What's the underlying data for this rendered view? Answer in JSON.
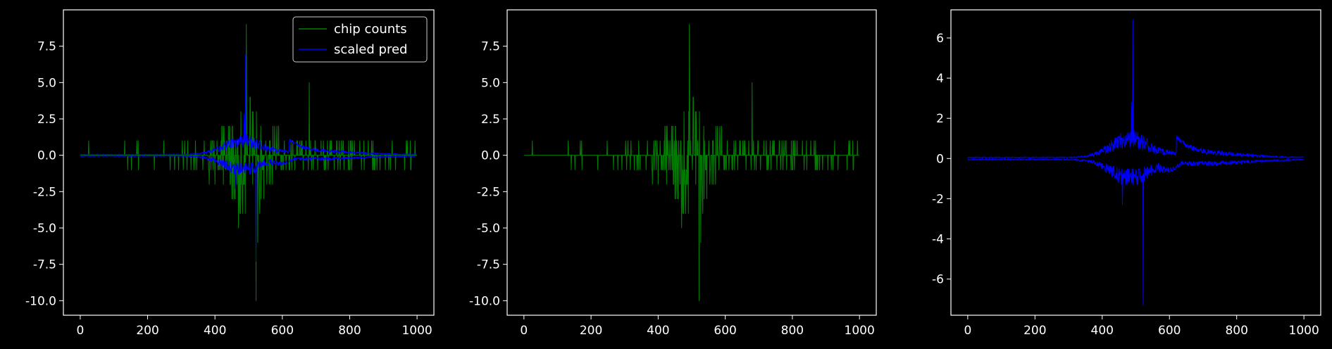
{
  "chart_data": [
    {
      "type": "line",
      "panel": 1,
      "xlim": [
        -50,
        1050
      ],
      "ylim": [
        -11,
        10
      ],
      "xticks": [
        "0",
        "200",
        "400",
        "600",
        "800",
        "1000"
      ],
      "yticks": [
        "-10.0",
        "-7.5",
        "-5.0",
        "-2.5",
        "0.0",
        "2.5",
        "5.0",
        "7.5"
      ],
      "grid": false,
      "legend": {
        "position": "top-right",
        "entries": [
          "chip counts",
          "scaled pred"
        ]
      },
      "series": [
        {
          "name": "chip counts",
          "color": "#008000",
          "n_points": 1000,
          "peaks": [
            {
              "x": 493,
              "y": 9
            },
            {
              "x": 522,
              "y": -10
            },
            {
              "x": 680,
              "y": 5
            },
            {
              "x": 470,
              "y": -5
            },
            {
              "x": 527,
              "y": -6
            },
            {
              "x": 505,
              "y": 4
            },
            {
              "x": 450,
              "y": -3
            },
            {
              "x": 545,
              "y": -3
            }
          ]
        },
        {
          "name": "scaled pred",
          "color": "#0000ff",
          "n_points": 1000,
          "peaks": [
            {
              "x": 491,
              "y": 6.9
            },
            {
              "x": 522,
              "y": -7.3
            },
            {
              "x": 487,
              "y": 2.8
            },
            {
              "x": 640,
              "y": 0.9
            },
            {
              "x": 460,
              "y": -2.3
            }
          ]
        }
      ]
    },
    {
      "type": "line",
      "panel": 2,
      "xlim": [
        -50,
        1050
      ],
      "ylim": [
        -11,
        10
      ],
      "xticks": [
        "0",
        "200",
        "400",
        "600",
        "800",
        "1000"
      ],
      "yticks": [
        "-10.0",
        "-7.5",
        "-5.0",
        "-2.5",
        "0.0",
        "2.5",
        "5.0",
        "7.5"
      ],
      "grid": false,
      "series": [
        {
          "name": "chip counts",
          "color": "#008000",
          "n_points": 1000,
          "peaks": [
            {
              "x": 493,
              "y": 9
            },
            {
              "x": 522,
              "y": -10
            },
            {
              "x": 680,
              "y": 5
            },
            {
              "x": 470,
              "y": -5
            },
            {
              "x": 527,
              "y": -6
            },
            {
              "x": 505,
              "y": 4
            },
            {
              "x": 450,
              "y": -3
            },
            {
              "x": 545,
              "y": -3
            }
          ]
        }
      ]
    },
    {
      "type": "line",
      "panel": 3,
      "xlim": [
        -50,
        1050
      ],
      "ylim": [
        -7.8,
        7.4
      ],
      "xticks": [
        "0",
        "200",
        "400",
        "600",
        "800",
        "1000"
      ],
      "yticks": [
        "-6",
        "-4",
        "-2",
        "0",
        "2",
        "4",
        "6"
      ],
      "grid": false,
      "series": [
        {
          "name": "scaled pred",
          "color": "#0000ff",
          "n_points": 1000,
          "peaks": [
            {
              "x": 491,
              "y": 6.9
            },
            {
              "x": 522,
              "y": -7.3
            },
            {
              "x": 487,
              "y": 2.8
            },
            {
              "x": 640,
              "y": 0.9
            },
            {
              "x": 460,
              "y": -2.3
            }
          ]
        }
      ]
    }
  ]
}
